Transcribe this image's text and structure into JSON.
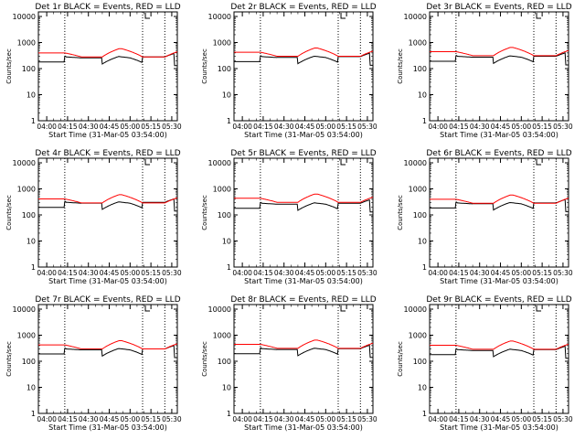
{
  "chart_data": [
    {
      "type": "line",
      "title": "Det 1r BLACK = Events, RED = LLD",
      "xlabel": "Start Time (31-Mar-05 03:54:00)",
      "ylabel": "Counts/sec",
      "yscale": "log",
      "ylim": [
        1,
        15000
      ],
      "yticks": [
        "1",
        "10",
        "100",
        "1000",
        "10000"
      ],
      "xticks": [
        "04:00",
        "04:15",
        "04:30",
        "04:45",
        "05:00",
        "05:15",
        "05:30"
      ],
      "series": [
        {
          "color": "#000000"
        },
        {
          "color": "#ff0000"
        }
      ]
    },
    {
      "type": "line",
      "title": "Det 2r BLACK = Events, RED = LLD",
      "xlabel": "Start Time (31-Mar-05 03:54:00)",
      "ylabel": "Counts/sec",
      "yscale": "log",
      "ylim": [
        1,
        15000
      ],
      "yticks": [
        "1",
        "10",
        "100",
        "1000",
        "10000"
      ],
      "xticks": [
        "04:00",
        "04:15",
        "04:30",
        "04:45",
        "05:00",
        "05:15",
        "05:30"
      ],
      "series": [
        {
          "color": "#000000"
        },
        {
          "color": "#ff0000"
        }
      ]
    },
    {
      "type": "line",
      "title": "Det 3r BLACK = Events, RED = LLD",
      "xlabel": "Start Time (31-Mar-05 03:54:00)",
      "ylabel": "Counts/sec",
      "yscale": "log",
      "ylim": [
        1,
        15000
      ],
      "yticks": [
        "1",
        "10",
        "100",
        "1000",
        "10000"
      ],
      "xticks": [
        "04:00",
        "04:15",
        "04:30",
        "04:45",
        "05:00",
        "05:15",
        "05:30"
      ],
      "series": [
        {
          "color": "#000000"
        },
        {
          "color": "#ff0000"
        }
      ]
    },
    {
      "type": "line",
      "title": "Det 4r BLACK = Events, RED = LLD",
      "xlabel": "Start Time (31-Mar-05 03:54:00)",
      "ylabel": "Counts/sec",
      "yscale": "log",
      "ylim": [
        1,
        15000
      ],
      "yticks": [
        "1",
        "10",
        "100",
        "1000",
        "10000"
      ],
      "xticks": [
        "04:00",
        "04:15",
        "04:30",
        "04:45",
        "05:00",
        "05:15",
        "05:30"
      ],
      "series": [
        {
          "color": "#000000"
        },
        {
          "color": "#ff0000"
        }
      ]
    },
    {
      "type": "line",
      "title": "Det 5r BLACK = Events, RED = LLD",
      "xlabel": "Start Time (31-Mar-05 03:54:00)",
      "ylabel": "Counts/sec",
      "yscale": "log",
      "ylim": [
        1,
        15000
      ],
      "yticks": [
        "1",
        "10",
        "100",
        "1000",
        "10000"
      ],
      "xticks": [
        "04:00",
        "04:15",
        "04:30",
        "04:45",
        "05:00",
        "05:15",
        "05:30"
      ],
      "series": [
        {
          "color": "#000000"
        },
        {
          "color": "#ff0000"
        }
      ]
    },
    {
      "type": "line",
      "title": "Det 6r BLACK = Events, RED = LLD",
      "xlabel": "Start Time (31-Mar-05 03:54:00)",
      "ylabel": "Counts/sec",
      "yscale": "log",
      "ylim": [
        1,
        15000
      ],
      "yticks": [
        "1",
        "10",
        "100",
        "1000",
        "10000"
      ],
      "xticks": [
        "04:00",
        "04:15",
        "04:30",
        "04:45",
        "05:00",
        "05:15",
        "05:30"
      ],
      "series": [
        {
          "color": "#000000"
        },
        {
          "color": "#ff0000"
        }
      ]
    },
    {
      "type": "line",
      "title": "Det 7r BLACK = Events, RED = LLD",
      "xlabel": "Start Time (31-Mar-05 03:54:00)",
      "ylabel": "Counts/sec",
      "yscale": "log",
      "ylim": [
        1,
        15000
      ],
      "yticks": [
        "1",
        "10",
        "100",
        "1000",
        "10000"
      ],
      "xticks": [
        "04:00",
        "04:15",
        "04:30",
        "04:45",
        "05:00",
        "05:15",
        "05:30"
      ],
      "series": [
        {
          "color": "#000000"
        },
        {
          "color": "#ff0000"
        }
      ]
    },
    {
      "type": "line",
      "title": "Det 8r BLACK = Events, RED = LLD",
      "xlabel": "Start Time (31-Mar-05 03:54:00)",
      "ylabel": "Counts/sec",
      "yscale": "log",
      "ylim": [
        1,
        15000
      ],
      "yticks": [
        "1",
        "10",
        "100",
        "1000",
        "10000"
      ],
      "xticks": [
        "04:00",
        "04:15",
        "04:30",
        "04:45",
        "05:00",
        "05:15",
        "05:30"
      ],
      "series": [
        {
          "color": "#000000"
        },
        {
          "color": "#ff0000"
        }
      ]
    },
    {
      "type": "line",
      "title": "Det 9r BLACK = Events, RED = LLD",
      "xlabel": "Start Time (31-Mar-05 03:54:00)",
      "ylabel": "Counts/sec",
      "yscale": "log",
      "ylim": [
        1,
        15000
      ],
      "yticks": [
        "1",
        "10",
        "100",
        "1000",
        "10000"
      ],
      "xticks": [
        "04:00",
        "04:15",
        "04:30",
        "04:45",
        "05:00",
        "05:15",
        "05:30"
      ],
      "series": [
        {
          "color": "#000000"
        },
        {
          "color": "#ff0000"
        }
      ]
    }
  ]
}
